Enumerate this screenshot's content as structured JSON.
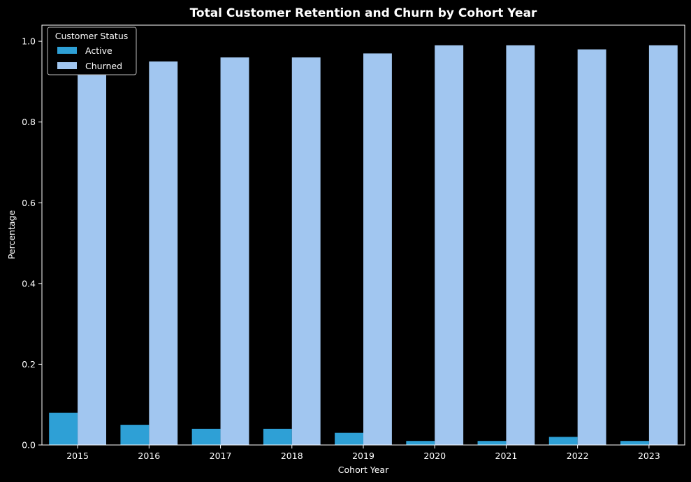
{
  "chart_data": {
    "type": "bar",
    "title": "Total Customer Retention and Churn by Cohort Year",
    "xlabel": "Cohort Year",
    "ylabel": "Percentage",
    "categories": [
      "2015",
      "2016",
      "2017",
      "2018",
      "2019",
      "2020",
      "2021",
      "2022",
      "2023"
    ],
    "ylim": [
      0,
      1.04
    ],
    "yticks": [
      "0.0",
      "0.2",
      "0.4",
      "0.6",
      "0.8",
      "1.0"
    ],
    "grid": false,
    "legend": {
      "title": "Customer Status",
      "placement": "top-left"
    },
    "series": [
      {
        "name": "Active",
        "color": "#2ea0d6",
        "values": [
          0.08,
          0.05,
          0.04,
          0.04,
          0.03,
          0.01,
          0.01,
          0.02,
          0.01
        ]
      },
      {
        "name": "Churned",
        "color": "#a1c6f0",
        "values": [
          0.92,
          0.95,
          0.96,
          0.96,
          0.97,
          0.99,
          0.99,
          0.98,
          0.99
        ]
      }
    ]
  }
}
